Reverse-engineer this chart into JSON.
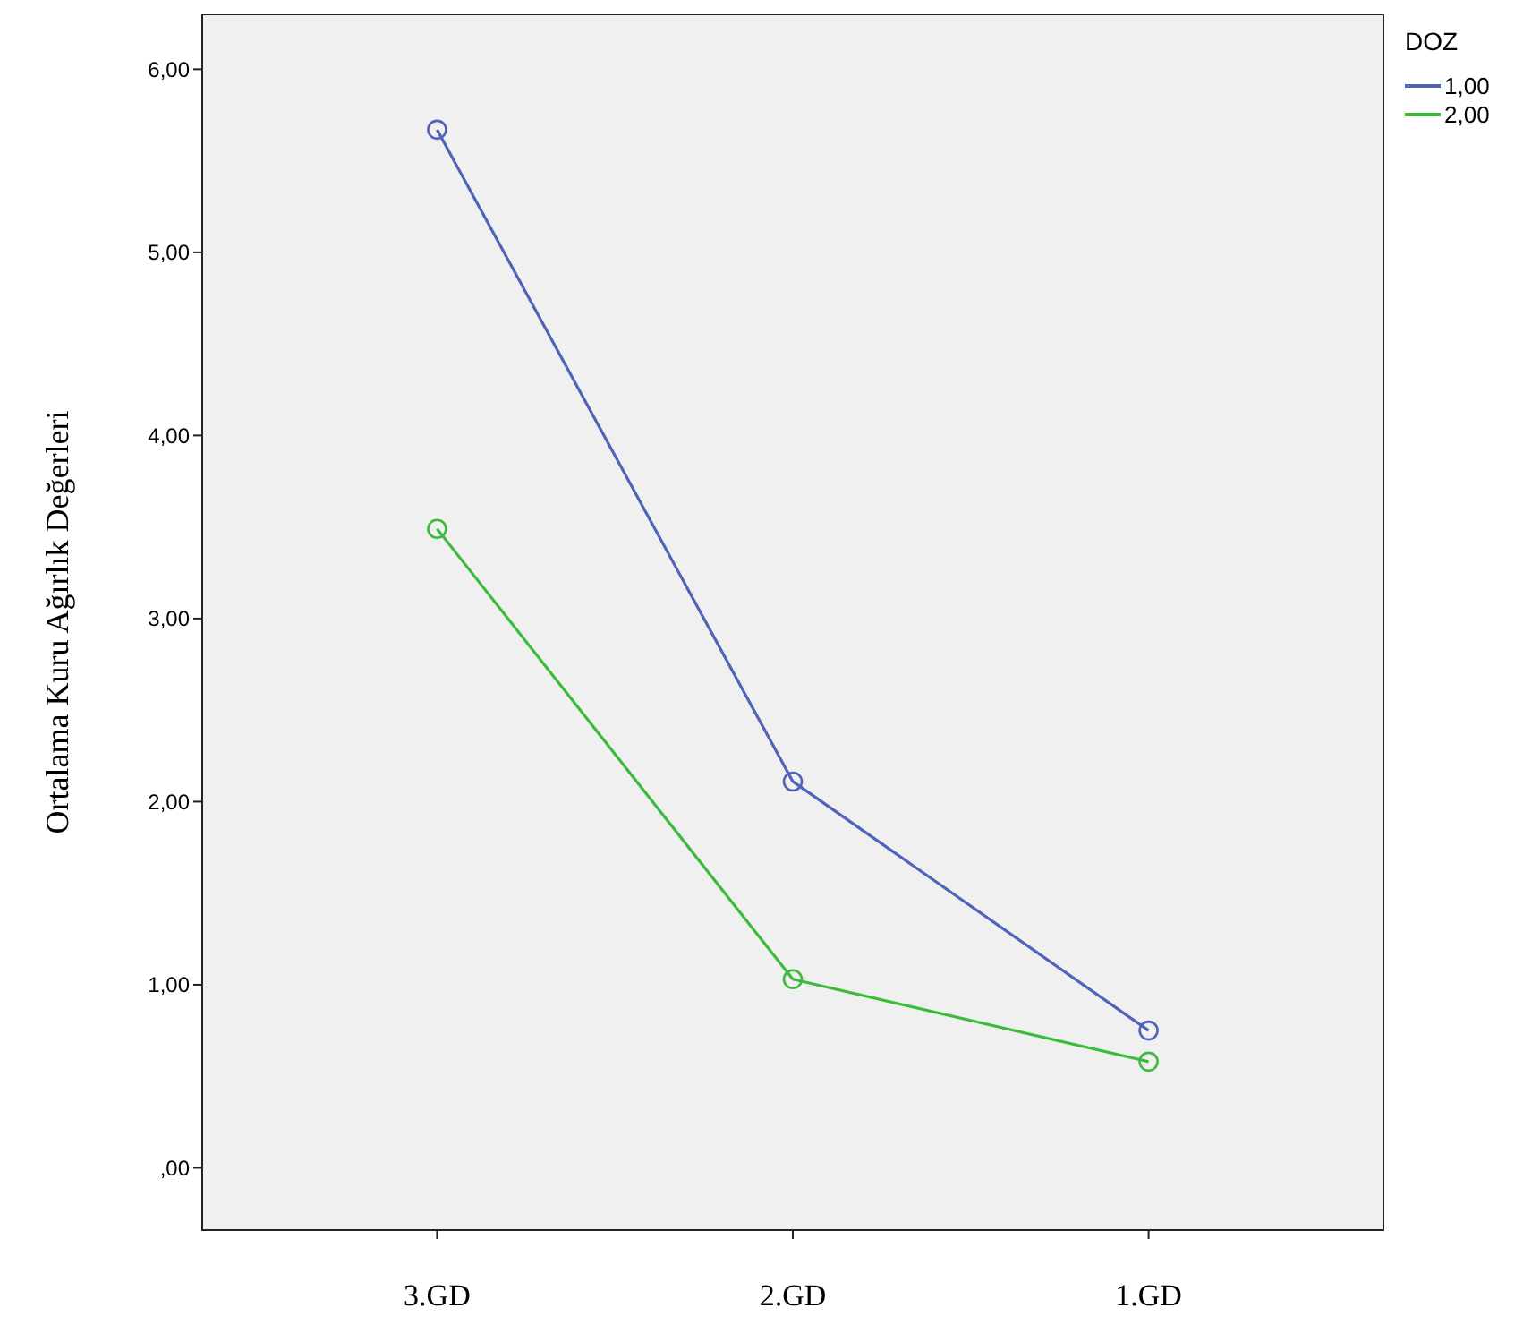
{
  "chart_data": {
    "type": "line",
    "ylabel": "Ortalama Kuru Ağırlık Değerleri",
    "legend_title": "DOZ",
    "categories": [
      "3.GD",
      "2.GD",
      "1.GD"
    ],
    "series": [
      {
        "name": "1,00",
        "color": "#5063b8",
        "values": [
          5.67,
          2.11,
          0.75
        ]
      },
      {
        "name": "2,00",
        "color": "#3cba3c",
        "values": [
          3.49,
          1.03,
          0.58
        ]
      }
    ],
    "ylim": [
      -0.34,
      6.3
    ],
    "yticks": [
      {
        "value": 0,
        "label": ",00"
      },
      {
        "value": 1,
        "label": "1,00"
      },
      {
        "value": 2,
        "label": "2,00"
      },
      {
        "value": 3,
        "label": "3,00"
      },
      {
        "value": 4,
        "label": "4,00"
      },
      {
        "value": 5,
        "label": "5,00"
      },
      {
        "value": 6,
        "label": "6,00"
      }
    ],
    "marker": "circle",
    "line_style": "solid",
    "legend": "top right",
    "grid": false
  }
}
